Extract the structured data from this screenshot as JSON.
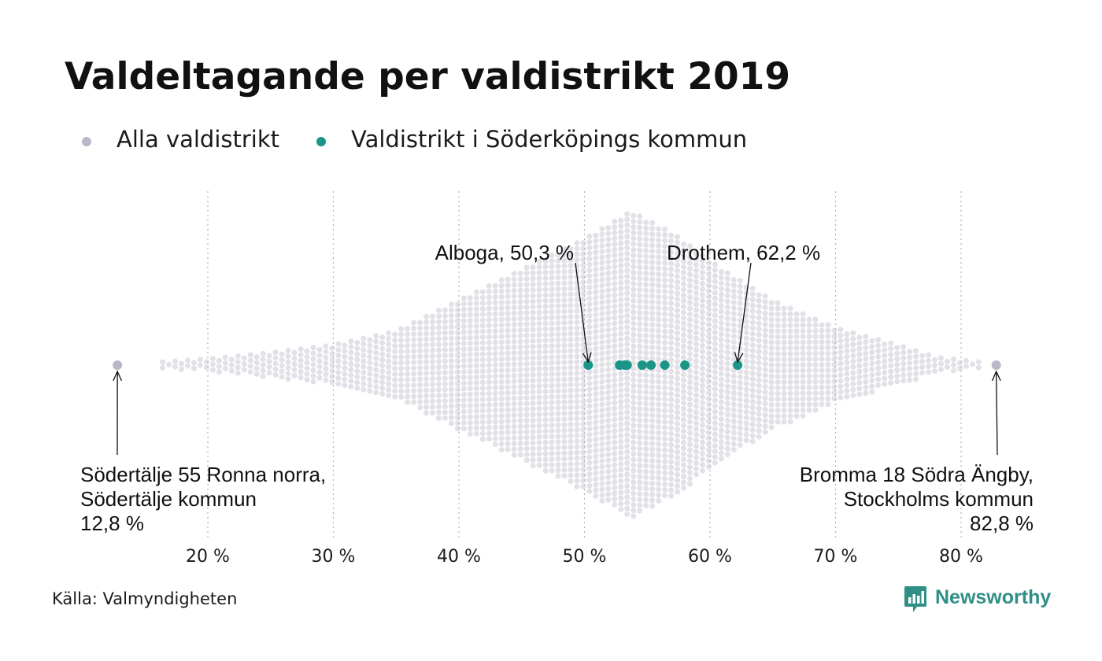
{
  "title": "Valdeltagande per valdistrikt 2019",
  "legend": {
    "all_label": "Alla valdistrikt",
    "all_color": "#b9b8c8",
    "local_label": "Valdistrikt i Söderköpings kommun",
    "local_color": "#1a9587"
  },
  "source": "Källa: Valmyndigheten",
  "brand": {
    "name": "Newsworthy",
    "icon": "newsworthy-logo-icon",
    "color": "#2f8f86"
  },
  "chart_data": {
    "type": "scatter",
    "subtype": "beeswarm",
    "title": "Valdeltagande per valdistrikt 2019",
    "xlabel": "",
    "ylabel": "",
    "xlim": [
      12,
      84
    ],
    "x_ticks": [
      20,
      30,
      40,
      50,
      60,
      70,
      80
    ],
    "x_tick_labels": [
      "20 %",
      "30 %",
      "40 %",
      "50 %",
      "60 %",
      "70 %",
      "80 %"
    ],
    "grid": "vertical dotted",
    "series": [
      {
        "name": "Alla valdistrikt",
        "color": "#b9b8c8",
        "distribution": {
          "min": 12.8,
          "max": 82.8,
          "density_profile": [
            {
              "x": 16.5,
              "d": 0.02
            },
            {
              "x": 20,
              "d": 0.04
            },
            {
              "x": 25,
              "d": 0.08
            },
            {
              "x": 30,
              "d": 0.13
            },
            {
              "x": 35,
              "d": 0.22
            },
            {
              "x": 40,
              "d": 0.42
            },
            {
              "x": 45,
              "d": 0.62
            },
            {
              "x": 50,
              "d": 0.82
            },
            {
              "x": 53.7,
              "d": 1.0
            },
            {
              "x": 57,
              "d": 0.86
            },
            {
              "x": 61,
              "d": 0.62
            },
            {
              "x": 65,
              "d": 0.42
            },
            {
              "x": 70,
              "d": 0.24
            },
            {
              "x": 75,
              "d": 0.13
            },
            {
              "x": 78,
              "d": 0.05
            },
            {
              "x": 81.5,
              "d": 0.02
            }
          ]
        }
      },
      {
        "name": "Valdistrikt i Söderköpings kommun",
        "color": "#1a9587",
        "values": [
          50.3,
          52.8,
          53.2,
          53.4,
          54.6,
          55.3,
          56.4,
          58.0,
          62.2
        ]
      }
    ],
    "annotations": [
      {
        "lines": [
          "Alboga, 50,3 %"
        ],
        "x": 50.3
      },
      {
        "lines": [
          "Drothem, 62,2 %"
        ],
        "x": 62.2
      },
      {
        "lines": [
          "Södertälje 55 Ronna norra,",
          "Södertälje kommun",
          "12,8 %"
        ],
        "x": 12.8
      },
      {
        "lines": [
          "Bromma 18 Södra Ängby,",
          "Stockholms kommun",
          "82,8 %"
        ],
        "x": 82.8
      }
    ]
  }
}
